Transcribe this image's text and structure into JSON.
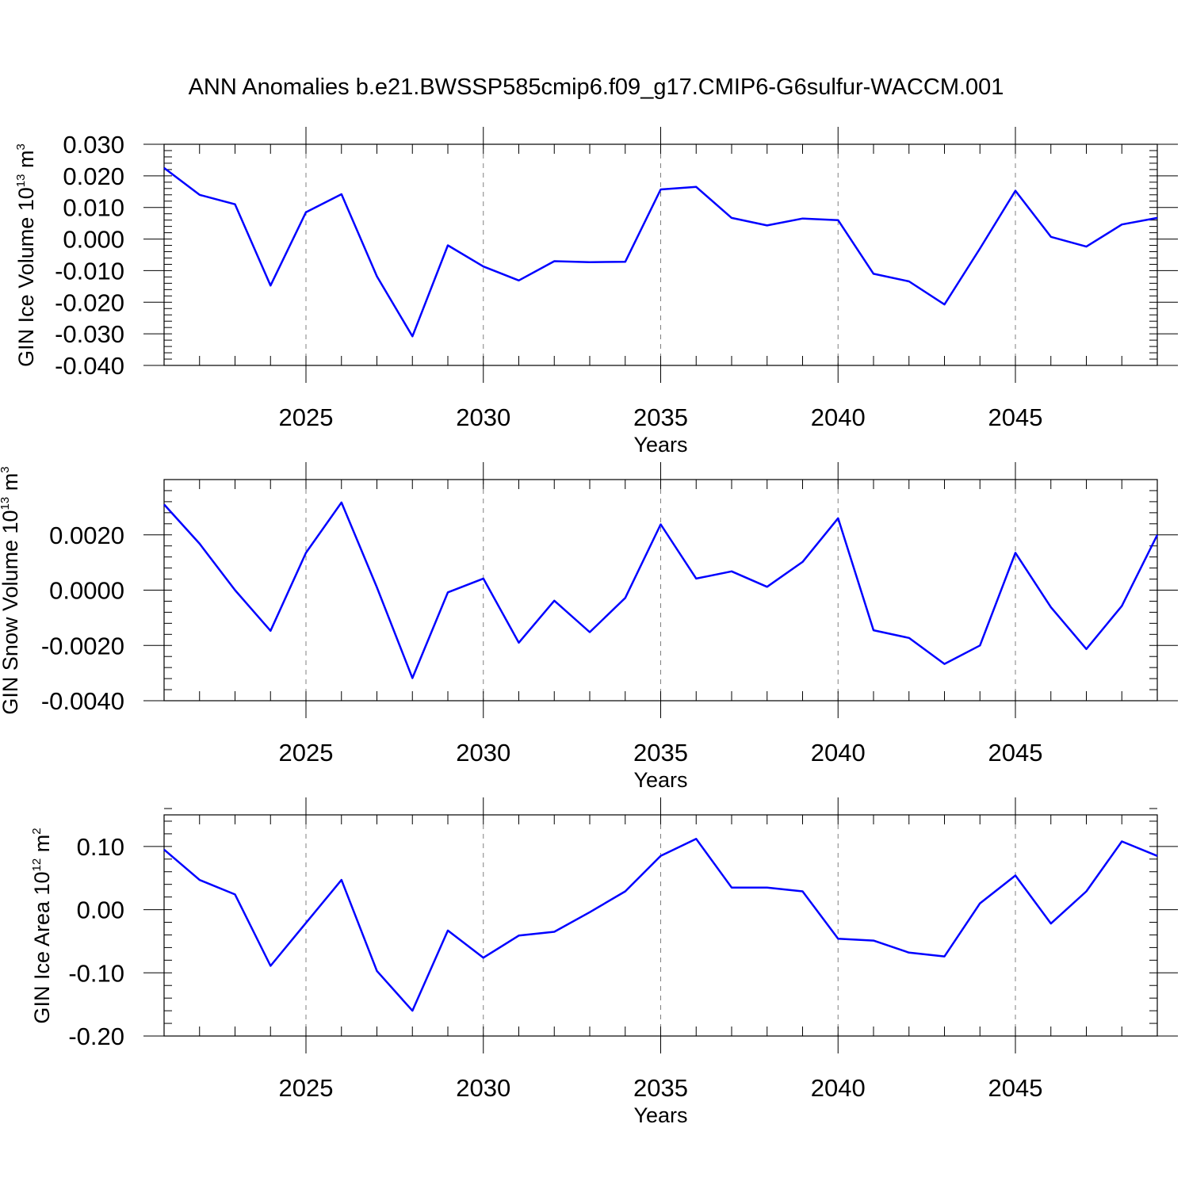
{
  "title": "ANN Anomalies b.e21.BWSSP585cmip6.f09_g17.CMIP6-G6sulfur-WACCM.001",
  "colors": {
    "line": "#0000ff",
    "axis": "#000000",
    "grid": "#808080"
  },
  "chart_data": [
    {
      "type": "line",
      "xlabel": "Years",
      "ylabel": {
        "text": "GIN Ice Volume 10",
        "exponent": "13",
        "unit": " m",
        "unit_exponent": "3"
      },
      "xlim": [
        2021,
        2049
      ],
      "ylim": [
        -0.04,
        0.03
      ],
      "x_ticks": [
        "2025",
        "2030",
        "2035",
        "2040",
        "2045"
      ],
      "y_ticks": [
        "0.030",
        "0.020",
        "0.010",
        "0.000",
        "-0.010",
        "-0.020",
        "-0.030",
        "-0.040"
      ],
      "y_tick_values": [
        0.03,
        0.02,
        0.01,
        0.0,
        -0.01,
        -0.02,
        -0.03,
        -0.04
      ],
      "grid": "vertical dashed at major x ticks",
      "series": [
        {
          "x": [
            2021,
            2022,
            2023,
            2024,
            2025,
            2026,
            2027,
            2028,
            2029,
            2030,
            2031,
            2032,
            2033,
            2034,
            2035,
            2036,
            2037,
            2038,
            2039,
            2040,
            2041,
            2042,
            2043,
            2044,
            2045,
            2046,
            2047,
            2048,
            2049
          ],
          "values": [
            0.0225,
            0.014,
            0.011,
            -0.0147,
            0.0085,
            0.0142,
            -0.0118,
            -0.0308,
            -0.002,
            -0.0087,
            -0.0131,
            -0.007,
            -0.0073,
            -0.0072,
            0.0157,
            0.0165,
            0.0067,
            0.0043,
            0.0065,
            0.006,
            -0.011,
            -0.0134,
            -0.0207,
            -0.003,
            0.0153,
            0.0007,
            -0.0024,
            0.0046,
            0.0067
          ]
        }
      ]
    },
    {
      "type": "line",
      "xlabel": "Years",
      "ylabel": {
        "text": "GIN Snow Volume 10",
        "exponent": "13",
        "unit": " m",
        "unit_exponent": "3"
      },
      "xlim": [
        2021,
        2049
      ],
      "ylim": [
        -0.004,
        0.004
      ],
      "x_ticks": [
        "2025",
        "2030",
        "2035",
        "2040",
        "2045"
      ],
      "y_ticks": [
        "0.0020",
        "0.0000",
        "-0.0020",
        "-0.0040"
      ],
      "y_tick_values": [
        0.002,
        0.0,
        -0.002,
        -0.004
      ],
      "grid": "vertical dashed at major x ticks",
      "series": [
        {
          "x": [
            2021,
            2022,
            2023,
            2024,
            2025,
            2026,
            2027,
            2028,
            2029,
            2030,
            2031,
            2032,
            2033,
            2034,
            2035,
            2036,
            2037,
            2038,
            2039,
            2040,
            2041,
            2042,
            2043,
            2044,
            2045,
            2046,
            2047,
            2048,
            2049
          ],
          "values": [
            0.0031,
            0.00168,
            0.0,
            -0.00147,
            0.00135,
            0.00317,
            0.0001,
            -0.00318,
            -8e-05,
            0.00042,
            -0.0019,
            -0.00038,
            -0.00152,
            -0.00028,
            0.00238,
            0.00042,
            0.00068,
            0.00012,
            0.00102,
            0.0026,
            -0.00145,
            -0.00173,
            -0.00267,
            -0.002,
            0.00135,
            -0.00062,
            -0.00213,
            -0.00057,
            0.002
          ]
        }
      ]
    },
    {
      "type": "line",
      "xlabel": "Years",
      "ylabel": {
        "text": "GIN Ice Area 10",
        "exponent": "12",
        "unit": " m",
        "unit_exponent": "2"
      },
      "xlim": [
        2021,
        2049
      ],
      "ylim": [
        -0.2,
        0.15
      ],
      "x_ticks": [
        "2025",
        "2030",
        "2035",
        "2040",
        "2045"
      ],
      "y_ticks": [
        "0.10",
        "0.00",
        "-0.10",
        "-0.20"
      ],
      "y_tick_values": [
        0.1,
        0.0,
        -0.1,
        -0.2
      ],
      "grid": "vertical dashed at major x ticks",
      "series": [
        {
          "x": [
            2021,
            2022,
            2023,
            2024,
            2025,
            2026,
            2027,
            2028,
            2029,
            2030,
            2031,
            2032,
            2033,
            2034,
            2035,
            2036,
            2037,
            2038,
            2039,
            2040,
            2041,
            2042,
            2043,
            2044,
            2045,
            2046,
            2047,
            2048,
            2049
          ],
          "values": [
            0.095,
            0.047,
            0.024,
            -0.089,
            -0.021,
            0.047,
            -0.097,
            -0.16,
            -0.033,
            -0.076,
            -0.041,
            -0.035,
            -0.004,
            0.029,
            0.085,
            0.112,
            0.035,
            0.035,
            0.029,
            -0.046,
            -0.049,
            -0.068,
            -0.074,
            0.01,
            0.054,
            -0.022,
            0.029,
            0.108,
            0.085
          ]
        }
      ]
    }
  ]
}
